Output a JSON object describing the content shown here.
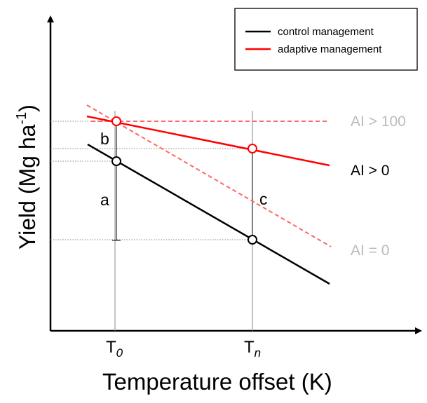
{
  "legend": {
    "control": "control management",
    "adaptive": "adaptive management"
  },
  "axes": {
    "x_label": "Temperature offset (K)",
    "y_label_main": "Yield (Mg ha",
    "y_label_sup": "-1",
    "y_label_close": ")",
    "x_tick_0_base": "T",
    "x_tick_0_sub": "0",
    "x_tick_n_base": "T",
    "x_tick_n_sub": "n"
  },
  "annotations": {
    "a": "a",
    "b": "b",
    "c": "c",
    "ai_high": "AI > 100",
    "ai_pos": "AI > 0",
    "ai_zero": "AI = 0"
  },
  "colors": {
    "control": "#000000",
    "adaptive": "#ff0000",
    "adaptive_dashed": "#ff6666",
    "muted_text": "#bbbbbb",
    "guide": "#888888"
  }
}
